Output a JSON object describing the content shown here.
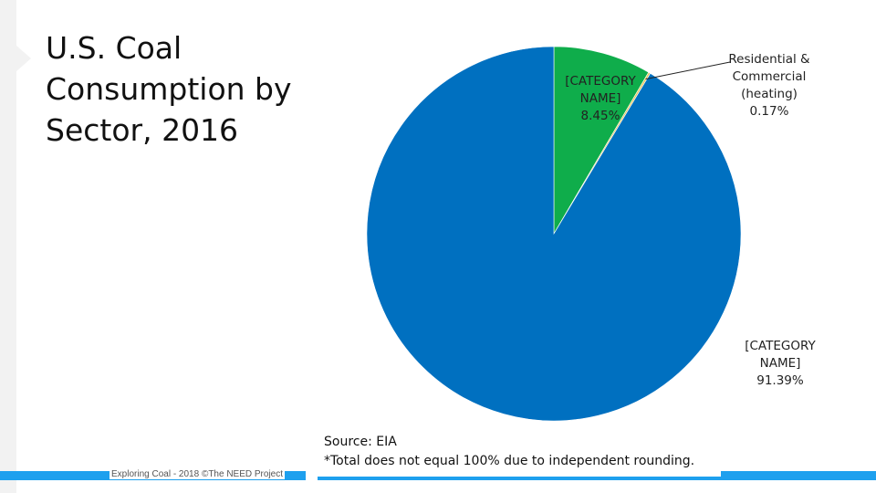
{
  "slide": {
    "title": "U.S. Coal Consumption by Sector, 2016",
    "source_line": "Source:  EIA",
    "note_line": "*Total does not equal 100% due to independent rounding.",
    "footer": "Exploring Coal - 2018 ©The NEED Project"
  },
  "chart_data": {
    "type": "pie",
    "title": "U.S. Coal Consumption by Sector, 2016",
    "slices": [
      {
        "name": "[CATEGORY NAME]",
        "value": 8.45,
        "label": "8.45%",
        "color": "#0fad4b"
      },
      {
        "name": "Residential & Commercial (heating)",
        "value": 0.17,
        "label": "0.17%",
        "color": "#e8c55a"
      },
      {
        "name": "[CATEGORY NAME]",
        "value": 91.39,
        "label": "91.39%",
        "color": "#0070c0"
      }
    ],
    "start_angle": "12 o'clock, clockwise"
  }
}
